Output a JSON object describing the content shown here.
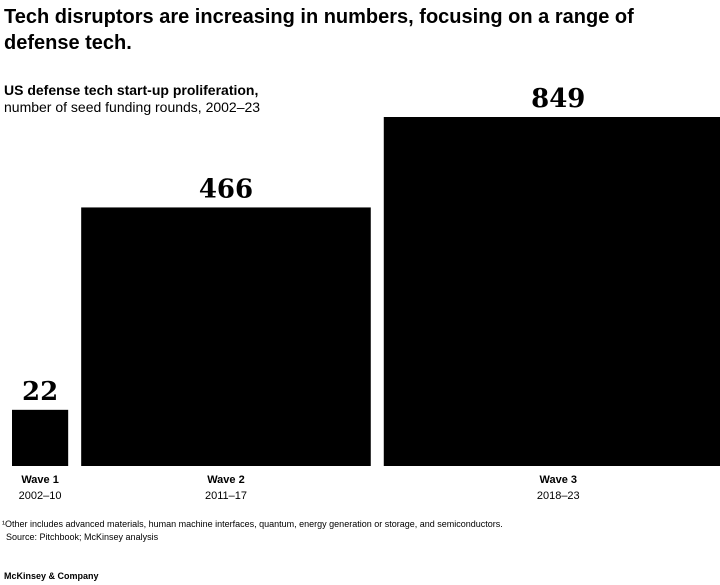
{
  "header": {
    "headline": "Tech disruptors are increasing in numbers, focusing on a range of defense tech."
  },
  "chart_data": {
    "type": "bar",
    "title": "US defense tech start-up proliferation,",
    "subtitle": "number of seed funding rounds, 2002–23",
    "categories": [
      "Wave 1",
      "Wave 2",
      "Wave 3"
    ],
    "periods": [
      "2002–10",
      "2011–17",
      "2018–23"
    ],
    "values": [
      22,
      466,
      849
    ],
    "bar_color": "#000000"
  },
  "footer": {
    "footnote": "¹Other includes advanced materials, human machine interfaces, quantum, energy generation or storage, and semiconductors.",
    "source": "Source: Pitchbook; McKinsey analysis",
    "brand": "McKinsey & Company"
  }
}
